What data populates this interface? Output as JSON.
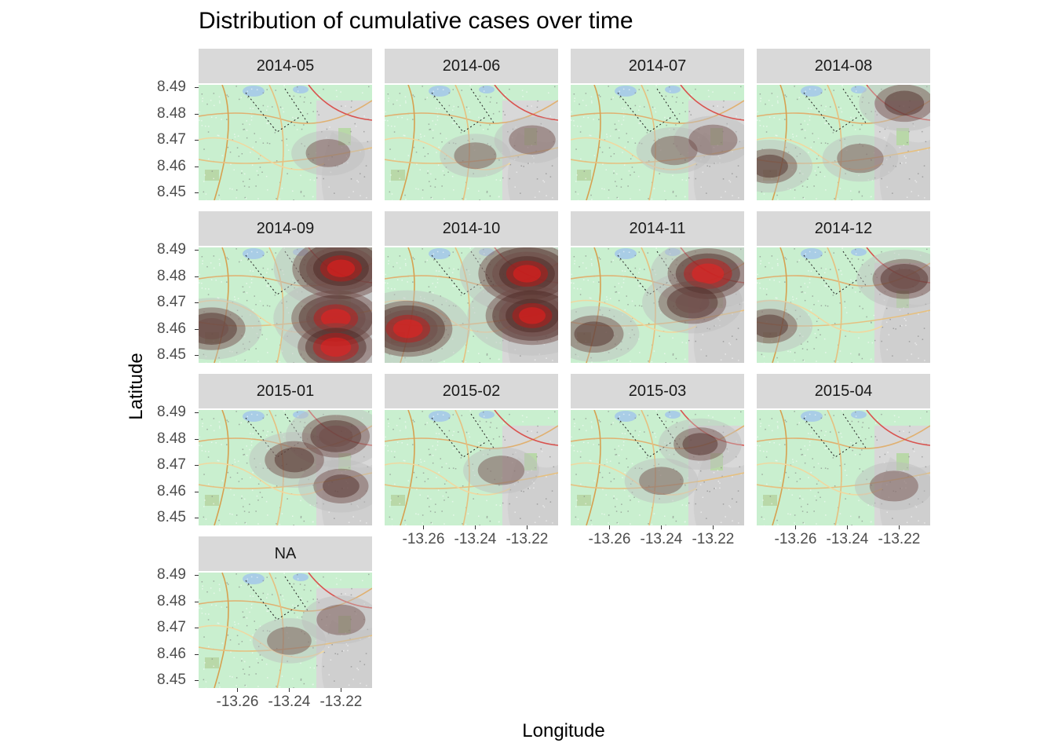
{
  "chart_data": {
    "type": "heatmap",
    "title": "Distribution of cumulative cases over time",
    "xlabel": "Longitude",
    "ylabel": "Latitude",
    "xlim": [
      -13.275,
      -13.208
    ],
    "ylim": [
      8.447,
      8.491
    ],
    "x_ticks": [
      "-13.26",
      "-13.24",
      "-13.22"
    ],
    "y_ticks": [
      "8.45",
      "8.46",
      "8.47",
      "8.48",
      "8.49"
    ],
    "x_tick_values": [
      -13.26,
      -13.24,
      -13.22
    ],
    "y_tick_values": [
      8.45,
      8.46,
      8.47,
      8.48,
      8.49
    ],
    "facet_layout": "wrap, 4 columns",
    "basemap": "street map",
    "density_fill_colors": [
      "#d9d9d9",
      "#3a0a0a",
      "#ff0000"
    ],
    "panels": [
      {
        "label": "2014-05",
        "hotspots": [
          {
            "lon": -13.225,
            "lat": 8.465,
            "level": 0.5
          }
        ]
      },
      {
        "label": "2014-06",
        "hotspots": [
          {
            "lon": -13.218,
            "lat": 8.47,
            "level": 0.6
          },
          {
            "lon": -13.24,
            "lat": 8.464,
            "level": 0.4
          }
        ]
      },
      {
        "label": "2014-07",
        "hotspots": [
          {
            "lon": -13.235,
            "lat": 8.466,
            "level": 0.6
          },
          {
            "lon": -13.22,
            "lat": 8.47,
            "level": 0.7
          }
        ]
      },
      {
        "label": "2014-08",
        "hotspots": [
          {
            "lon": -13.218,
            "lat": 8.484,
            "level": 1.2
          },
          {
            "lon": -13.27,
            "lat": 8.46,
            "level": 1.0
          },
          {
            "lon": -13.235,
            "lat": 8.463,
            "level": 0.6
          }
        ]
      },
      {
        "label": "2014-09",
        "hotspots": [
          {
            "lon": -13.22,
            "lat": 8.483,
            "level": 3.0
          },
          {
            "lon": -13.222,
            "lat": 8.464,
            "level": 2.6
          },
          {
            "lon": -13.27,
            "lat": 8.46,
            "level": 1.6
          },
          {
            "lon": -13.222,
            "lat": 8.453,
            "level": 2.0
          }
        ]
      },
      {
        "label": "2014-10",
        "hotspots": [
          {
            "lon": -13.22,
            "lat": 8.481,
            "level": 3.0
          },
          {
            "lon": -13.218,
            "lat": 8.465,
            "level": 2.8
          },
          {
            "lon": -13.266,
            "lat": 8.46,
            "level": 2.6
          }
        ]
      },
      {
        "label": "2014-11",
        "hotspots": [
          {
            "lon": -13.222,
            "lat": 8.481,
            "level": 2.2
          },
          {
            "lon": -13.228,
            "lat": 8.47,
            "level": 1.6
          },
          {
            "lon": -13.266,
            "lat": 8.458,
            "level": 1.2
          }
        ]
      },
      {
        "label": "2014-12",
        "hotspots": [
          {
            "lon": -13.218,
            "lat": 8.479,
            "level": 1.4
          },
          {
            "lon": -13.27,
            "lat": 8.461,
            "level": 1.0
          }
        ]
      },
      {
        "label": "2015-01",
        "hotspots": [
          {
            "lon": -13.222,
            "lat": 8.481,
            "level": 1.6
          },
          {
            "lon": -13.238,
            "lat": 8.472,
            "level": 1.2
          },
          {
            "lon": -13.22,
            "lat": 8.462,
            "level": 1.0
          }
        ]
      },
      {
        "label": "2015-02",
        "hotspots": [
          {
            "lon": -13.23,
            "lat": 8.468,
            "level": 0.6
          }
        ]
      },
      {
        "label": "2015-03",
        "hotspots": [
          {
            "lon": -13.225,
            "lat": 8.478,
            "level": 0.9
          },
          {
            "lon": -13.24,
            "lat": 8.464,
            "level": 0.5
          }
        ]
      },
      {
        "label": "2015-04",
        "hotspots": [
          {
            "lon": -13.222,
            "lat": 8.462,
            "level": 0.7
          }
        ]
      },
      {
        "label": "NA",
        "hotspots": [
          {
            "lon": -13.22,
            "lat": 8.473,
            "level": 0.7
          },
          {
            "lon": -13.24,
            "lat": 8.465,
            "level": 0.5
          }
        ]
      }
    ]
  }
}
